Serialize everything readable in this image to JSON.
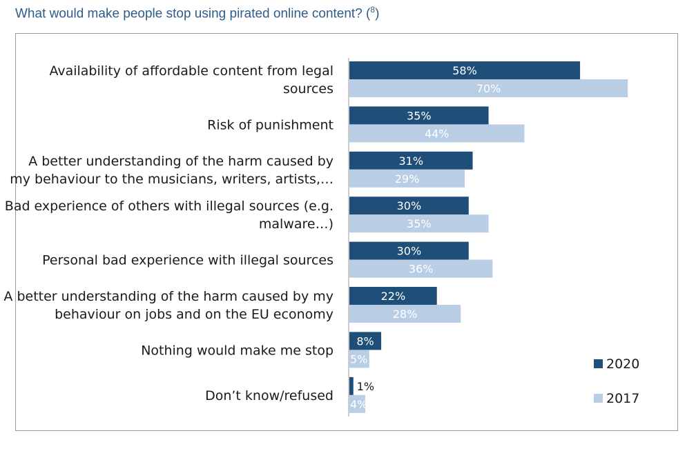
{
  "title": "What would make people stop using pirated online content? (",
  "title_ref": "8",
  "title_close": ")",
  "chart_data": {
    "type": "bar",
    "orientation": "horizontal",
    "categories": [
      [
        "Availability of affordable content from legal",
        "sources"
      ],
      [
        "Risk of punishment"
      ],
      [
        "A better understanding of the harm caused by",
        "my behaviour to the musicians, writers, artists,…"
      ],
      [
        "Bad experience of others with illegal sources (e.g.",
        "malware…)"
      ],
      [
        "Personal bad experience with illegal sources"
      ],
      [
        "A better understanding of the harm caused by my",
        "behaviour on jobs and on the EU economy"
      ],
      [
        "Nothing would make me stop"
      ],
      [
        "Don’t know/refused"
      ]
    ],
    "series": [
      {
        "name": "2020",
        "color": "#1f4e79",
        "values": [
          58,
          35,
          31,
          30,
          30,
          22,
          8,
          1
        ]
      },
      {
        "name": "2017",
        "color": "#b9cde5",
        "values": [
          70,
          44,
          29,
          35,
          36,
          28,
          5,
          4
        ]
      }
    ],
    "value_suffix": "%",
    "legend_position": "bottom-right",
    "grid": false
  }
}
